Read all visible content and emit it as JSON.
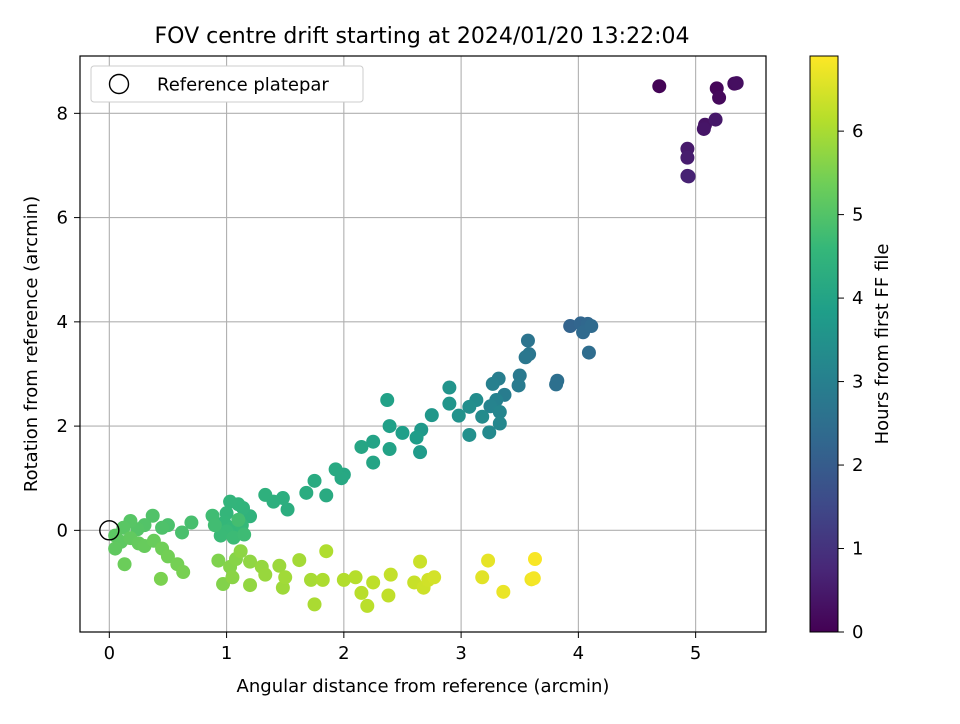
{
  "chart_data": {
    "type": "scatter",
    "title": "FOV centre drift starting at 2024/01/20 13:22:04",
    "xlabel": "Angular distance from reference (arcmin)",
    "ylabel": "Rotation from reference (arcmin)",
    "xlim": [
      -0.25,
      5.6
    ],
    "ylim": [
      -1.95,
      9.1
    ],
    "x_ticks": [
      "0",
      "1",
      "2",
      "3",
      "4",
      "5"
    ],
    "y_ticks": [
      "0",
      "2",
      "4",
      "6",
      "8"
    ],
    "grid": true,
    "legend": {
      "position": "top-left",
      "entries": [
        "Reference platepar"
      ]
    },
    "reference_point": {
      "x": 0,
      "y": 0
    },
    "colorbar": {
      "label": "Hours from first FF file",
      "range": [
        0,
        6.9
      ],
      "ticks": [
        "0",
        "1",
        "2",
        "3",
        "4",
        "5",
        "6"
      ],
      "colormap": [
        "#440154",
        "#482878",
        "#3e4a89",
        "#31688e",
        "#26828e",
        "#1f9e89",
        "#35b779",
        "#6ece58",
        "#b5de2b",
        "#fde725"
      ]
    },
    "series": [
      {
        "values": [
          {
            "x": 4.69,
            "y": 8.52,
            "h": 0.05
          },
          {
            "x": 5.18,
            "y": 8.48,
            "h": 0.1
          },
          {
            "x": 5.2,
            "y": 8.3,
            "h": 0.15
          },
          {
            "x": 5.33,
            "y": 8.57,
            "h": 0.2
          },
          {
            "x": 5.35,
            "y": 8.58,
            "h": 0.25
          },
          {
            "x": 5.08,
            "y": 7.78,
            "h": 0.35
          },
          {
            "x": 5.07,
            "y": 7.7,
            "h": 0.4
          },
          {
            "x": 5.17,
            "y": 7.88,
            "h": 0.45
          },
          {
            "x": 4.93,
            "y": 7.32,
            "h": 0.5
          },
          {
            "x": 4.93,
            "y": 7.15,
            "h": 0.55
          },
          {
            "x": 4.93,
            "y": 6.8,
            "h": 0.6
          },
          {
            "x": 4.94,
            "y": 6.79,
            "h": 0.65
          },
          {
            "x": 3.93,
            "y": 3.92,
            "h": 2.2
          },
          {
            "x": 4.02,
            "y": 3.97,
            "h": 2.25
          },
          {
            "x": 4.08,
            "y": 3.96,
            "h": 2.3
          },
          {
            "x": 4.04,
            "y": 3.8,
            "h": 2.35
          },
          {
            "x": 4.11,
            "y": 3.92,
            "h": 2.4
          },
          {
            "x": 4.09,
            "y": 3.41,
            "h": 2.45
          },
          {
            "x": 3.82,
            "y": 2.87,
            "h": 2.5
          },
          {
            "x": 3.81,
            "y": 2.8,
            "h": 2.55
          },
          {
            "x": 3.57,
            "y": 3.64,
            "h": 2.65
          },
          {
            "x": 3.58,
            "y": 3.38,
            "h": 2.7
          },
          {
            "x": 3.55,
            "y": 3.32,
            "h": 2.75
          },
          {
            "x": 3.5,
            "y": 2.97,
            "h": 2.8
          },
          {
            "x": 3.49,
            "y": 2.78,
            "h": 2.85
          },
          {
            "x": 3.37,
            "y": 2.6,
            "h": 2.9
          },
          {
            "x": 3.32,
            "y": 2.91,
            "h": 2.95
          },
          {
            "x": 3.27,
            "y": 2.81,
            "h": 3.0
          },
          {
            "x": 3.3,
            "y": 2.5,
            "h": 3.05
          },
          {
            "x": 3.25,
            "y": 2.38,
            "h": 3.1
          },
          {
            "x": 3.33,
            "y": 2.27,
            "h": 3.15
          },
          {
            "x": 3.33,
            "y": 2.05,
            "h": 3.2
          },
          {
            "x": 3.24,
            "y": 1.88,
            "h": 3.25
          },
          {
            "x": 3.18,
            "y": 2.18,
            "h": 3.3
          },
          {
            "x": 3.13,
            "y": 2.5,
            "h": 3.35
          },
          {
            "x": 3.07,
            "y": 2.37,
            "h": 3.4
          },
          {
            "x": 3.07,
            "y": 1.83,
            "h": 3.45
          },
          {
            "x": 2.98,
            "y": 2.2,
            "h": 3.5
          },
          {
            "x": 2.9,
            "y": 2.74,
            "h": 3.55
          },
          {
            "x": 2.9,
            "y": 2.43,
            "h": 3.6
          },
          {
            "x": 2.75,
            "y": 2.21,
            "h": 3.65
          },
          {
            "x": 2.66,
            "y": 1.93,
            "h": 3.7
          },
          {
            "x": 2.65,
            "y": 1.5,
            "h": 3.75
          },
          {
            "x": 2.62,
            "y": 1.78,
            "h": 3.8
          },
          {
            "x": 2.5,
            "y": 1.87,
            "h": 3.85
          },
          {
            "x": 2.39,
            "y": 2.0,
            "h": 3.9
          },
          {
            "x": 2.37,
            "y": 2.5,
            "h": 3.93
          },
          {
            "x": 2.39,
            "y": 1.56,
            "h": 3.96
          },
          {
            "x": 2.25,
            "y": 1.7,
            "h": 4.0
          },
          {
            "x": 2.25,
            "y": 1.3,
            "h": 4.03
          },
          {
            "x": 2.15,
            "y": 1.6,
            "h": 4.06
          },
          {
            "x": 2.0,
            "y": 1.07,
            "h": 4.1
          },
          {
            "x": 1.98,
            "y": 1.0,
            "h": 4.13
          },
          {
            "x": 1.93,
            "y": 1.17,
            "h": 4.16
          },
          {
            "x": 1.85,
            "y": 0.67,
            "h": 4.2
          },
          {
            "x": 1.75,
            "y": 0.95,
            "h": 4.23
          },
          {
            "x": 1.68,
            "y": 0.72,
            "h": 4.26
          },
          {
            "x": 1.52,
            "y": 0.4,
            "h": 4.3
          },
          {
            "x": 1.48,
            "y": 0.62,
            "h": 4.33
          },
          {
            "x": 1.4,
            "y": 0.55,
            "h": 4.36
          },
          {
            "x": 1.33,
            "y": 0.68,
            "h": 4.4
          },
          {
            "x": 1.2,
            "y": 0.27,
            "h": 4.45
          },
          {
            "x": 1.14,
            "y": 0.43,
            "h": 4.48
          },
          {
            "x": 1.1,
            "y": 0.5,
            "h": 4.5
          },
          {
            "x": 1.03,
            "y": 0.55,
            "h": 4.52
          },
          {
            "x": 1.0,
            "y": 0.33,
            "h": 4.55
          },
          {
            "x": 0.98,
            "y": 0.15,
            "h": 4.58
          },
          {
            "x": 1.05,
            "y": 0.05,
            "h": 4.6
          },
          {
            "x": 1.13,
            "y": 0.1,
            "h": 4.62
          },
          {
            "x": 1.0,
            "y": -0.02,
            "h": 4.65
          },
          {
            "x": 0.95,
            "y": -0.1,
            "h": 4.67
          },
          {
            "x": 1.06,
            "y": -0.14,
            "h": 4.7
          },
          {
            "x": 1.15,
            "y": -0.08,
            "h": 4.72
          },
          {
            "x": 0.88,
            "y": 0.28,
            "h": 4.75
          },
          {
            "x": 0.9,
            "y": 0.1,
            "h": 4.77
          },
          {
            "x": 1.1,
            "y": 0.2,
            "h": 4.8
          },
          {
            "x": 0.7,
            "y": 0.15,
            "h": 4.85
          },
          {
            "x": 0.62,
            "y": -0.04,
            "h": 4.88
          },
          {
            "x": 0.5,
            "y": 0.1,
            "h": 4.91
          },
          {
            "x": 0.45,
            "y": 0.05,
            "h": 4.94
          },
          {
            "x": 0.37,
            "y": 0.28,
            "h": 4.97
          },
          {
            "x": 0.3,
            "y": 0.1,
            "h": 5.0
          },
          {
            "x": 0.24,
            "y": 0.02,
            "h": 5.03
          },
          {
            "x": 0.18,
            "y": 0.18,
            "h": 5.06
          },
          {
            "x": 0.12,
            "y": 0.05,
            "h": 5.09
          },
          {
            "x": 0.05,
            "y": -0.1,
            "h": 5.12
          },
          {
            "x": 0.1,
            "y": -0.22,
            "h": 5.15
          },
          {
            "x": 0.05,
            "y": -0.35,
            "h": 5.18
          },
          {
            "x": 0.18,
            "y": -0.15,
            "h": 5.21
          },
          {
            "x": 0.25,
            "y": -0.25,
            "h": 5.24
          },
          {
            "x": 0.3,
            "y": -0.3,
            "h": 5.27
          },
          {
            "x": 0.38,
            "y": -0.2,
            "h": 5.3
          },
          {
            "x": 0.13,
            "y": -0.65,
            "h": 5.33
          },
          {
            "x": 0.45,
            "y": -0.35,
            "h": 5.38
          },
          {
            "x": 0.5,
            "y": -0.5,
            "h": 5.41
          },
          {
            "x": 0.58,
            "y": -0.65,
            "h": 5.44
          },
          {
            "x": 0.63,
            "y": -0.8,
            "h": 5.47
          },
          {
            "x": 0.44,
            "y": -0.93,
            "h": 5.5
          },
          {
            "x": 0.93,
            "y": -0.58,
            "h": 5.55
          },
          {
            "x": 0.97,
            "y": -1.03,
            "h": 5.58
          },
          {
            "x": 1.03,
            "y": -0.7,
            "h": 5.61
          },
          {
            "x": 1.08,
            "y": -0.55,
            "h": 5.64
          },
          {
            "x": 1.05,
            "y": -0.9,
            "h": 5.67
          },
          {
            "x": 1.12,
            "y": -0.4,
            "h": 5.7
          },
          {
            "x": 1.2,
            "y": -0.6,
            "h": 5.73
          },
          {
            "x": 1.2,
            "y": -1.05,
            "h": 5.76
          },
          {
            "x": 1.3,
            "y": -0.7,
            "h": 5.79
          },
          {
            "x": 1.33,
            "y": -0.85,
            "h": 5.82
          },
          {
            "x": 1.45,
            "y": -0.68,
            "h": 5.86
          },
          {
            "x": 1.48,
            "y": -1.1,
            "h": 5.89
          },
          {
            "x": 1.5,
            "y": -0.9,
            "h": 5.92
          },
          {
            "x": 1.62,
            "y": -0.57,
            "h": 5.95
          },
          {
            "x": 1.72,
            "y": -0.95,
            "h": 5.98
          },
          {
            "x": 1.75,
            "y": -1.42,
            "h": 6.01
          },
          {
            "x": 1.82,
            "y": -0.95,
            "h": 6.04
          },
          {
            "x": 1.85,
            "y": -0.4,
            "h": 6.07
          },
          {
            "x": 2.0,
            "y": -0.95,
            "h": 6.1
          },
          {
            "x": 2.1,
            "y": -0.9,
            "h": 6.13
          },
          {
            "x": 2.15,
            "y": -1.2,
            "h": 6.16
          },
          {
            "x": 2.2,
            "y": -1.45,
            "h": 6.19
          },
          {
            "x": 2.25,
            "y": -1.0,
            "h": 6.22
          },
          {
            "x": 2.38,
            "y": -1.25,
            "h": 6.25
          },
          {
            "x": 2.4,
            "y": -0.85,
            "h": 6.28
          },
          {
            "x": 2.6,
            "y": -1.0,
            "h": 6.33
          },
          {
            "x": 2.65,
            "y": -0.6,
            "h": 6.36
          },
          {
            "x": 2.68,
            "y": -1.1,
            "h": 6.39
          },
          {
            "x": 2.72,
            "y": -0.95,
            "h": 6.42
          },
          {
            "x": 2.77,
            "y": -0.9,
            "h": 6.45
          },
          {
            "x": 3.18,
            "y": -0.9,
            "h": 6.6
          },
          {
            "x": 3.23,
            "y": -0.58,
            "h": 6.65
          },
          {
            "x": 3.36,
            "y": -1.18,
            "h": 6.7
          },
          {
            "x": 3.6,
            "y": -0.94,
            "h": 6.75
          },
          {
            "x": 3.62,
            "y": -0.92,
            "h": 6.8
          },
          {
            "x": 3.63,
            "y": -0.55,
            "h": 6.85
          }
        ]
      }
    ]
  }
}
